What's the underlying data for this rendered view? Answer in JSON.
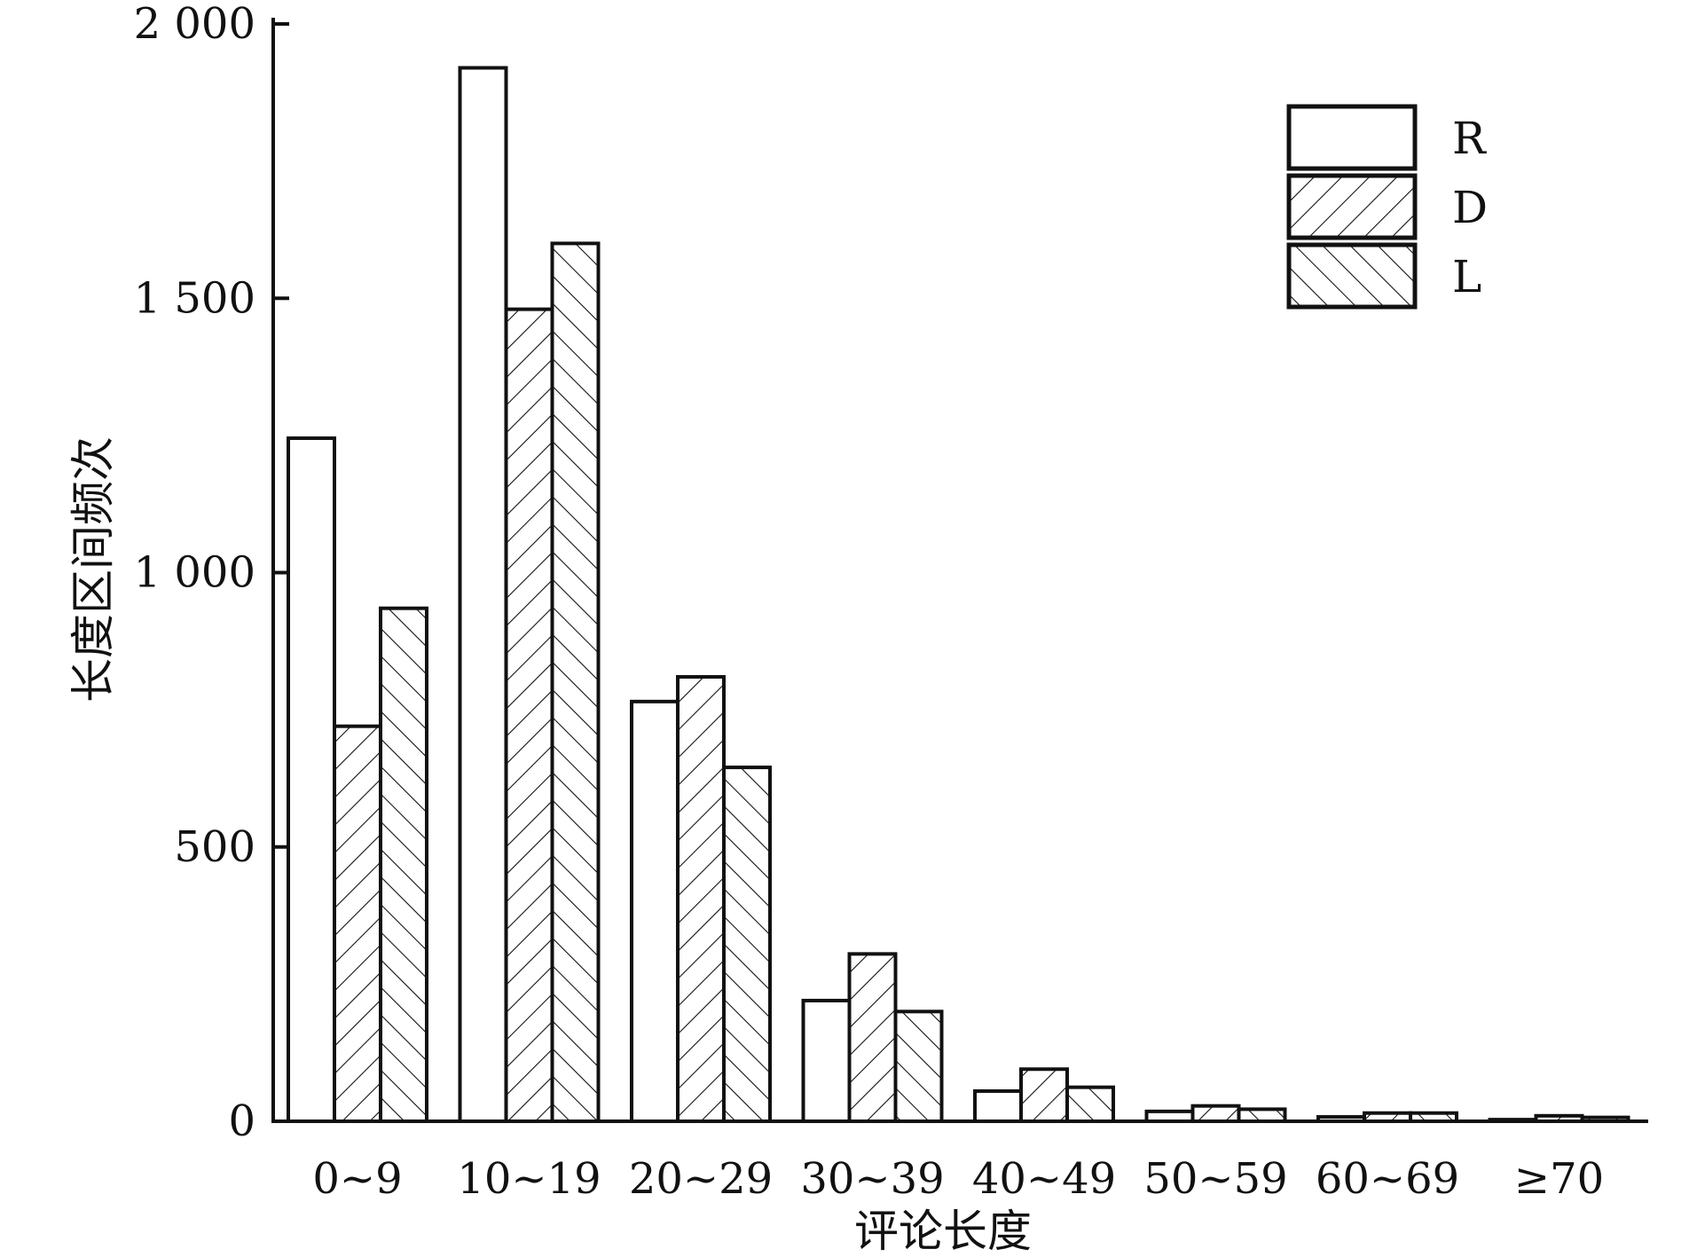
{
  "chart_data": {
    "type": "bar",
    "xlabel": "评论长度",
    "ylabel": "长度区间频次",
    "categories": [
      "0~9",
      "10~19",
      "20~29",
      "30~39",
      "40~49",
      "50~59",
      "60~69",
      "≥70"
    ],
    "series": [
      {
        "name": "R",
        "pattern": "none",
        "values": [
          1245,
          1920,
          765,
          220,
          55,
          18,
          8,
          3
        ]
      },
      {
        "name": "D",
        "pattern": "forward-hatch",
        "values": [
          720,
          1480,
          810,
          305,
          95,
          28,
          15,
          10
        ]
      },
      {
        "name": "L",
        "pattern": "back-hatch",
        "values": [
          935,
          1600,
          645,
          200,
          62,
          22,
          15,
          7
        ]
      }
    ],
    "ylim": [
      0,
      2000
    ],
    "yticks": [
      0,
      500,
      1000,
      1500,
      2000
    ],
    "ytick_labels": [
      "0",
      "500",
      "1 000",
      "1 500",
      "2 000"
    ],
    "legend_position": "top-right",
    "grid": false,
    "colors": {
      "stroke": "#111111",
      "fill": "#ffffff"
    }
  }
}
